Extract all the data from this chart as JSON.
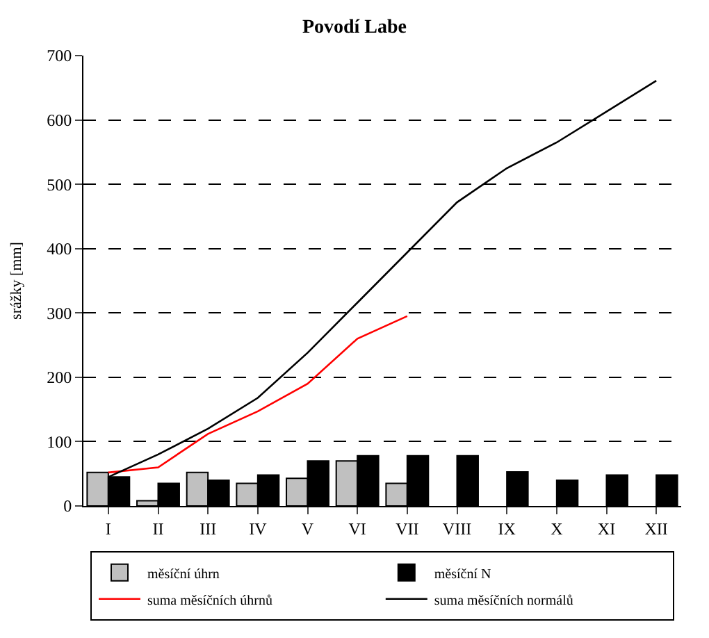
{
  "chart_data": {
    "type": "bar",
    "title": "Povodí Labe",
    "ylabel": "srážky [mm]",
    "categories": [
      "I",
      "II",
      "III",
      "IV",
      "V",
      "VI",
      "VII",
      "VIII",
      "IX",
      "X",
      "XI",
      "XII"
    ],
    "series": [
      {
        "name": "měsíční úhrn",
        "color": "#c0c0c0",
        "values": [
          52,
          8,
          52,
          35,
          43,
          70,
          35,
          null,
          null,
          null,
          null,
          null
        ]
      },
      {
        "name": "měsíční N",
        "color": "#000000",
        "values": [
          45,
          35,
          40,
          48,
          70,
          78,
          78,
          78,
          53,
          40,
          48,
          48
        ]
      },
      {
        "name": "suma měsíčních úhrnů",
        "type": "line",
        "color": "#ff0000",
        "values": [
          52,
          60,
          112,
          147,
          190,
          260,
          295,
          null,
          null,
          null,
          null,
          null
        ]
      },
      {
        "name": "suma měsíčních normálů",
        "type": "line",
        "color": "#000000",
        "values": [
          45,
          80,
          120,
          168,
          238,
          316,
          394,
          472,
          525,
          565,
          613,
          661
        ]
      }
    ],
    "ylim": [
      0,
      700
    ],
    "yticks": [
      0,
      100,
      200,
      300,
      400,
      500,
      600,
      700
    ],
    "grid": "y",
    "legend": "bottom",
    "marker": "none",
    "line_style": "solid"
  }
}
